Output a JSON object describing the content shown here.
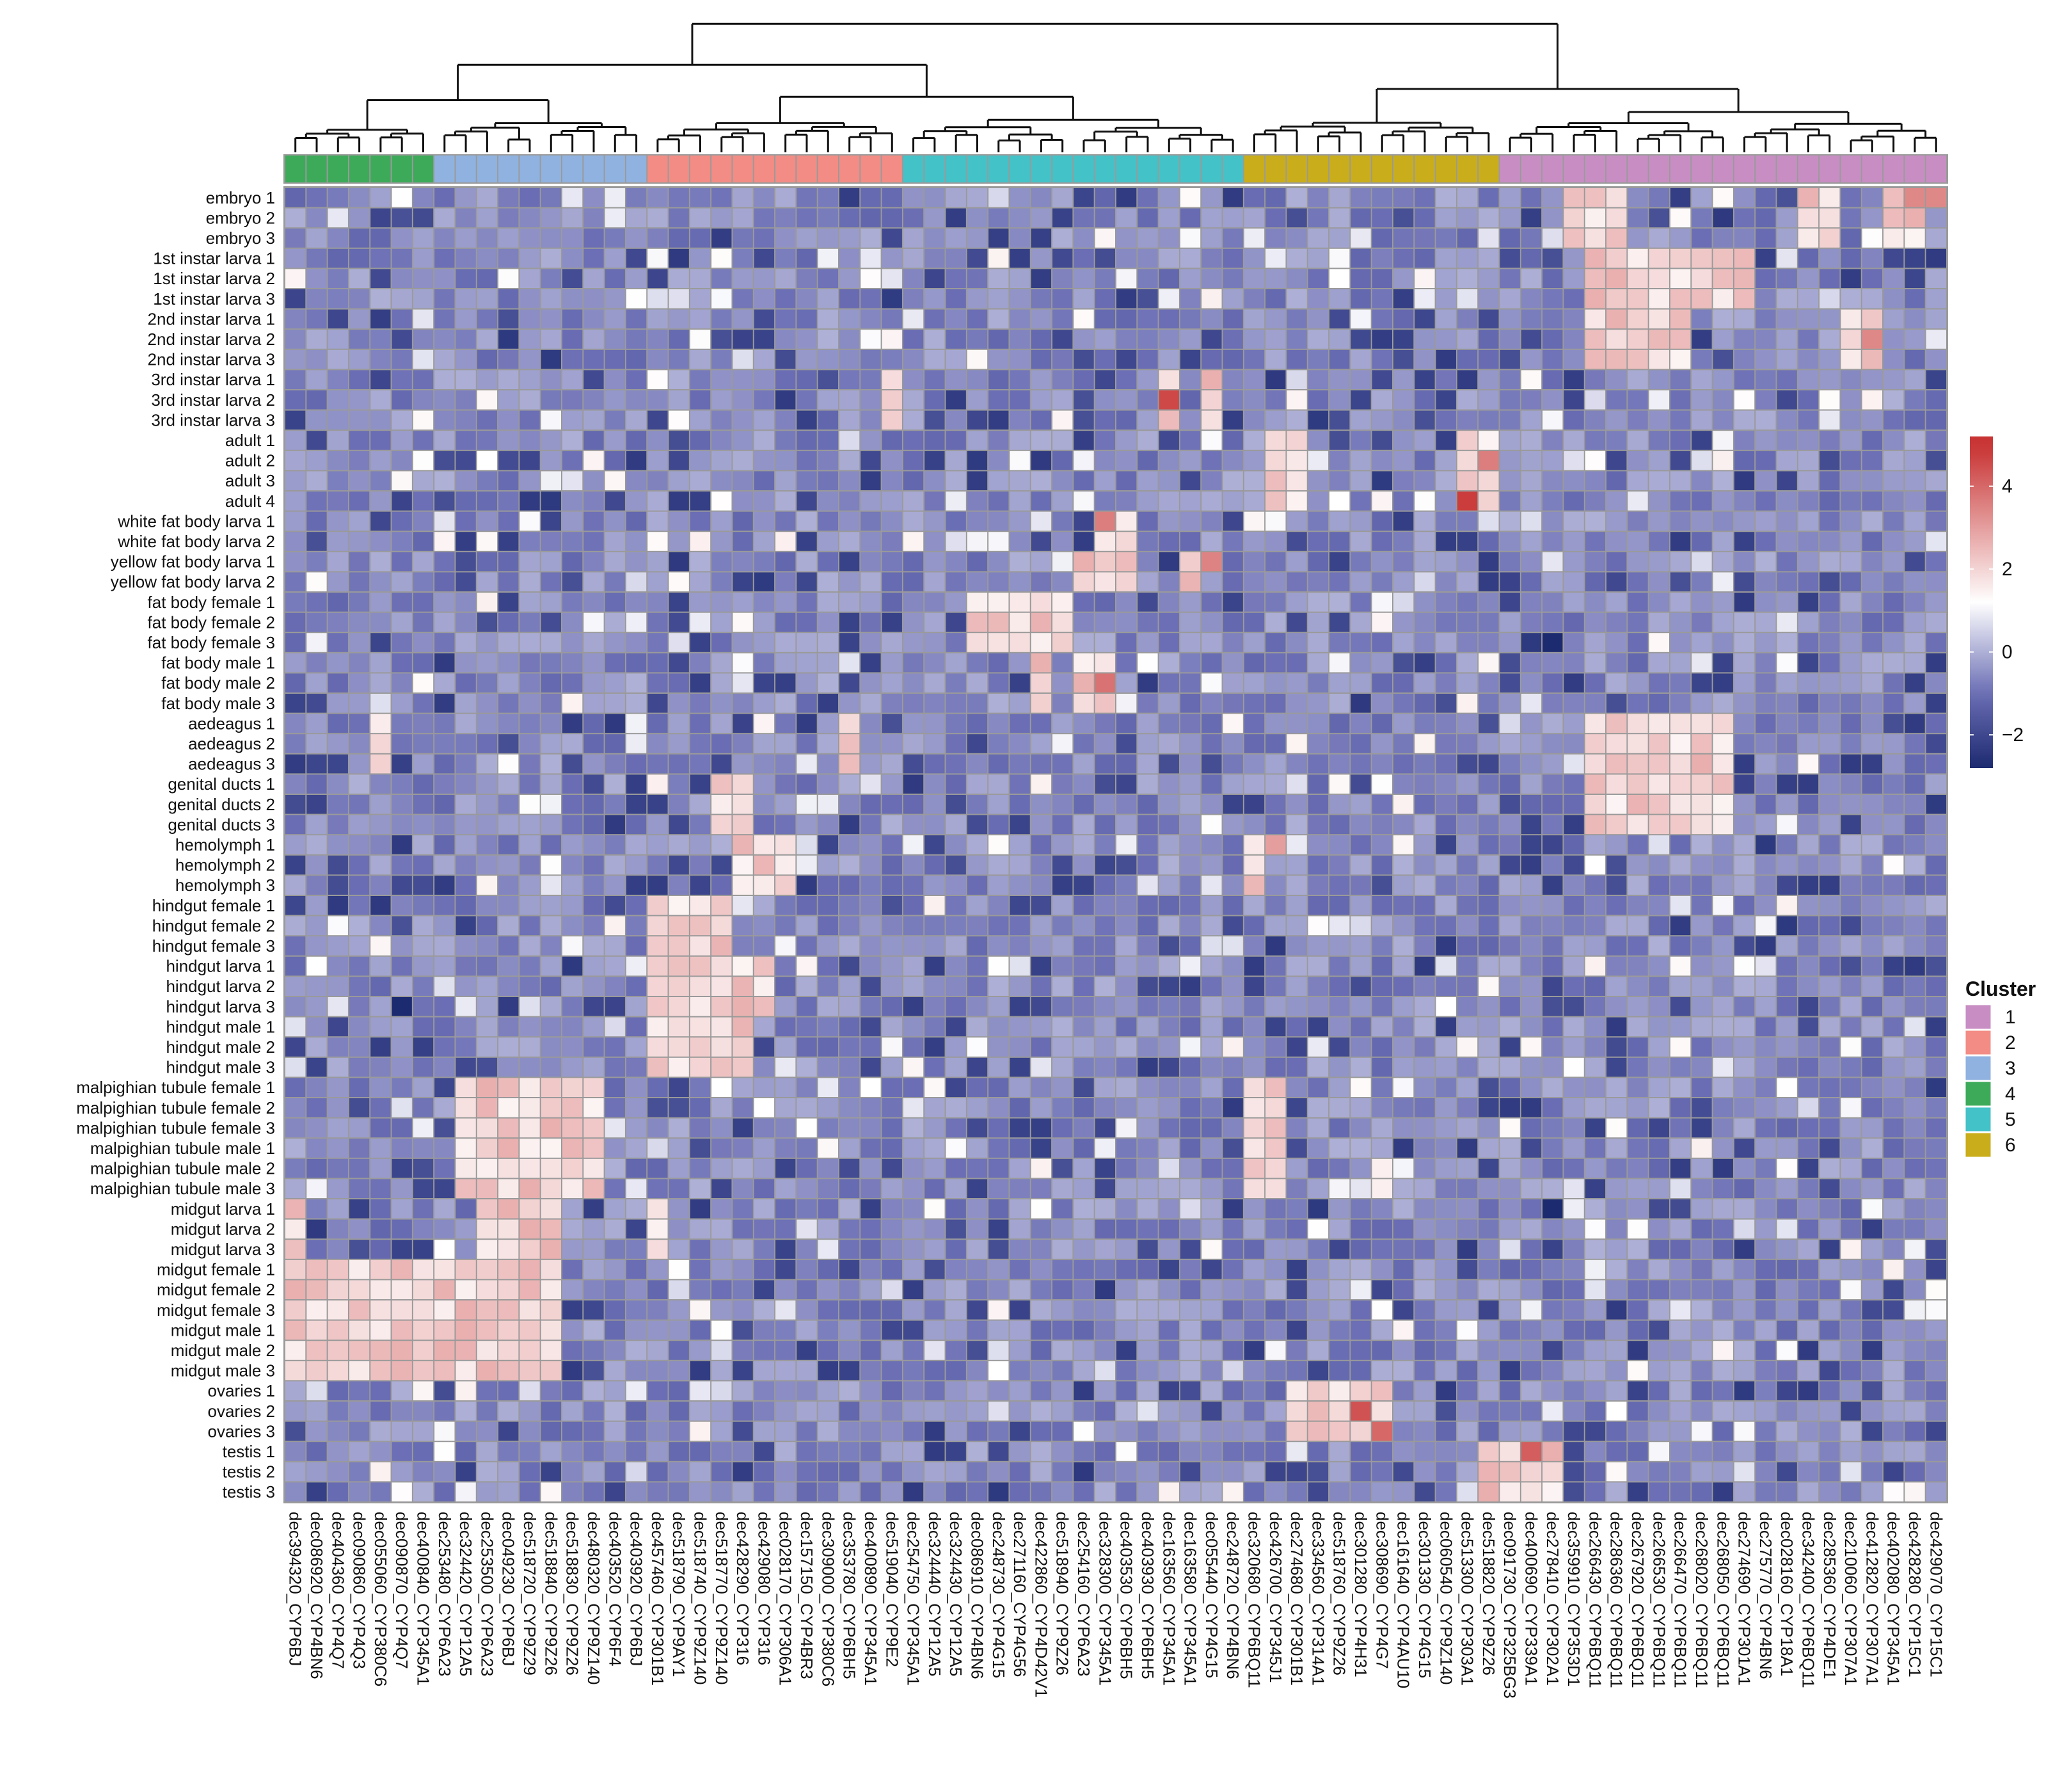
{
  "chart_data": {
    "type": "heatmap",
    "title": "",
    "rows": [
      "embryo 1",
      "embryo 2",
      "embryo 3",
      "1st instar larva 1",
      "1st instar larva 2",
      "1st instar larva 3",
      "2nd instar larva 1",
      "2nd instar larva 2",
      "2nd instar larva 3",
      "3rd instar larva 1",
      "3rd instar larva 2",
      "3rd instar larva 3",
      "adult 1",
      "adult 2",
      "adult 3",
      "adult 4",
      "white fat body larva 1",
      "white fat body larva 2",
      "yellow fat body larva 1",
      "yellow fat body larva 2",
      "fat body female 1",
      "fat body female 2",
      "fat body female 3",
      "fat body male 1",
      "fat body male 2",
      "fat body male 3",
      "aedeagus 1",
      "aedeagus 2",
      "aedeagus 3",
      "genital ducts 1",
      "genital ducts 2",
      "genital ducts 3",
      "hemolymph 1",
      "hemolymph 2",
      "hemolymph 3",
      "hindgut female 1",
      "hindgut female 2",
      "hindgut female 3",
      "hindgut larva 1",
      "hindgut larva 2",
      "hindgut larva 3",
      "hindgut male 1",
      "hindgut male 2",
      "hindgut male 3",
      "malpighian tubule female 1",
      "malpighian tubule female 2",
      "malpighian tubule female 3",
      "malpighian tubule male 1",
      "malpighian tubule male 2",
      "malpighian tubule male 3",
      "midgut larva 1",
      "midgut larva 2",
      "midgut larva 3",
      "midgut female 1",
      "midgut female 2",
      "midgut female 3",
      "midgut male 1",
      "midgut male 2",
      "midgut male 3",
      "ovaries 1",
      "ovaries 2",
      "ovaries 3",
      "testis 1",
      "testis 2",
      "testis 3"
    ],
    "columns": [
      "dec394320_CYP6BJ",
      "dec086920_CYP4BN6",
      "dec404360_CYP4Q7",
      "dec090860_CYP4Q3",
      "dec055060_CYP380C6",
      "dec090870_CYP4Q7",
      "dec400840_CYP345A1",
      "dec253480_CYP6A23",
      "dec324420_CYP12A5",
      "dec253500_CYP6A23",
      "dec049230_CYP6BJ",
      "dec518720_CYP9Z29",
      "dec518840_CYP9Z26",
      "dec518830_CYP9Z26",
      "dec480320_CYP9Z140",
      "dec403520_CYP6F4",
      "dec403920_CYP6BJ",
      "dec457460_CYP301B1",
      "dec518790_CYP9AY1",
      "dec518740_CYP9Z140",
      "dec518770_CYP9Z140",
      "dec428290_CYP316",
      "dec429080_CYP316",
      "dec028170_CYP306A1",
      "dec157150_CYP4BR3",
      "dec309000_CYP380C6",
      "dec353780_CYP6BH5",
      "dec400890_CYP345A1",
      "dec519040_CYP9E2",
      "dec254750_CYP345A1",
      "dec324440_CYP12A5",
      "dec324430_CYP12A5",
      "dec086910_CYP4BN6",
      "dec248730_CYP4G15",
      "dec271160_CYP4G56",
      "dec422860_CYP4D42V1",
      "dec518940_CYP9Z26",
      "dec254160_CYP6A23",
      "dec328300_CYP345A1",
      "dec403530_CYP6BH5",
      "dec403930_CYP6BH5",
      "dec163560_CYP345A1",
      "dec163580_CYP345A1",
      "dec055440_CYP4G15",
      "dec248720_CYP4BN6",
      "dec320680_CYP6BQ11",
      "dec426700_CYP345J1",
      "dec274680_CYP301B1",
      "dec334560_CYP314A1",
      "dec518760_CYP9Z26",
      "dec301280_CYP4H31",
      "dec308690_CYP4G7",
      "dec161640_CYP4AU10",
      "dec301330_CYP4G15",
      "dec060540_CYP9Z140",
      "dec513300_CYP303A1",
      "dec518820_CYP9Z26",
      "dec091730_CYP325BG3",
      "dec400690_CYP339A1",
      "dec278410_CYP302A1",
      "dec359910_CYP353D1",
      "dec266430_CYP6BQ11",
      "dec286360_CYP6BQ11",
      "dec267920_CYP6BQ11",
      "dec266530_CYP6BQ11",
      "dec266470_CYP6BQ11",
      "dec268020_CYP6BQ11",
      "dec268050_CYP6BQ11",
      "dec274690_CYP301A1",
      "dec275770_CYP4BN6",
      "dec028160_CYP18A1",
      "dec342400_CYP6BQ11",
      "dec285360_CYP4DE1",
      "dec210060_CYP307A1",
      "dec412820_CYP307A1",
      "dec402080_CYP345A1",
      "dec428280_CYP15C1",
      "dec429070_CYP15C1"
    ],
    "column_clusters": [
      4,
      4,
      4,
      4,
      4,
      4,
      4,
      3,
      3,
      3,
      3,
      3,
      3,
      3,
      3,
      3,
      3,
      2,
      2,
      2,
      2,
      2,
      2,
      2,
      2,
      2,
      2,
      2,
      2,
      5,
      5,
      5,
      5,
      5,
      5,
      5,
      5,
      5,
      5,
      5,
      5,
      5,
      5,
      5,
      5,
      6,
      6,
      6,
      6,
      6,
      6,
      6,
      6,
      6,
      6,
      6,
      6,
      1,
      1,
      1,
      1,
      1,
      1,
      1,
      1,
      1,
      1,
      1,
      1,
      1,
      1,
      1,
      1,
      1,
      1,
      1,
      1,
      1
    ],
    "value_range": [
      -2.8,
      5.2
    ],
    "cluster_colors": {
      "1": "#c88ec4",
      "2": "#f28c84",
      "3": "#8fb2e0",
      "4": "#3daa5a",
      "5": "#43c2c8",
      "6": "#c9ad1a"
    },
    "legend": {
      "colorbar_ticks": [
        4,
        2,
        0,
        -2
      ],
      "cluster_title": "Cluster",
      "cluster_labels": [
        "1",
        "2",
        "3",
        "4",
        "5",
        "6"
      ],
      "position": "right"
    },
    "colorscale": [
      "#1c2a70",
      "#6b6eb4",
      "#ffffff",
      "#c83232"
    ],
    "dendrogram": "hierarchical clustering over columns, shown on top"
  }
}
